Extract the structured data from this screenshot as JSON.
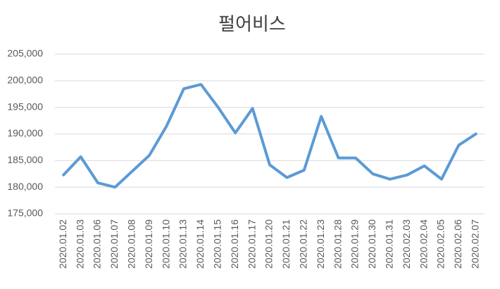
{
  "chart_data": {
    "type": "line",
    "title": "펄어비스",
    "categories": [
      "2020.01.02",
      "2020.01.03",
      "2020.01.06",
      "2020.01.07",
      "2020.01.08",
      "2020.01.09",
      "2020.01.10",
      "2020.01.13",
      "2020.01.14",
      "2020.01.15",
      "2020.01.16",
      "2020.01.17",
      "2020.01.20",
      "2020.01.21",
      "2020.01.22",
      "2020.01.23",
      "2020.01.28",
      "2020.01.29",
      "2020.01.30",
      "2020.01.31",
      "2020.02.03",
      "2020.02.04",
      "2020.02.05",
      "2020.02.06",
      "2020.02.07"
    ],
    "values": [
      182300,
      185700,
      180800,
      180000,
      183000,
      186000,
      191500,
      198500,
      199300,
      195000,
      190200,
      194800,
      184200,
      181800,
      183200,
      193300,
      185500,
      185500,
      182500,
      181500,
      182300,
      184000,
      181500,
      187900,
      190000
    ],
    "color": "#5b9bd5",
    "ylim": [
      175000,
      205000
    ],
    "yticks": [
      {
        "value": 175000,
        "label": "175,000"
      },
      {
        "value": 180000,
        "label": "180,000"
      },
      {
        "value": 185000,
        "label": "185,000"
      },
      {
        "value": 190000,
        "label": "190,000"
      },
      {
        "value": 195000,
        "label": "195,000"
      },
      {
        "value": 200000,
        "label": "200,000"
      },
      {
        "value": 205000,
        "label": "205,000"
      }
    ],
    "grid": true
  }
}
